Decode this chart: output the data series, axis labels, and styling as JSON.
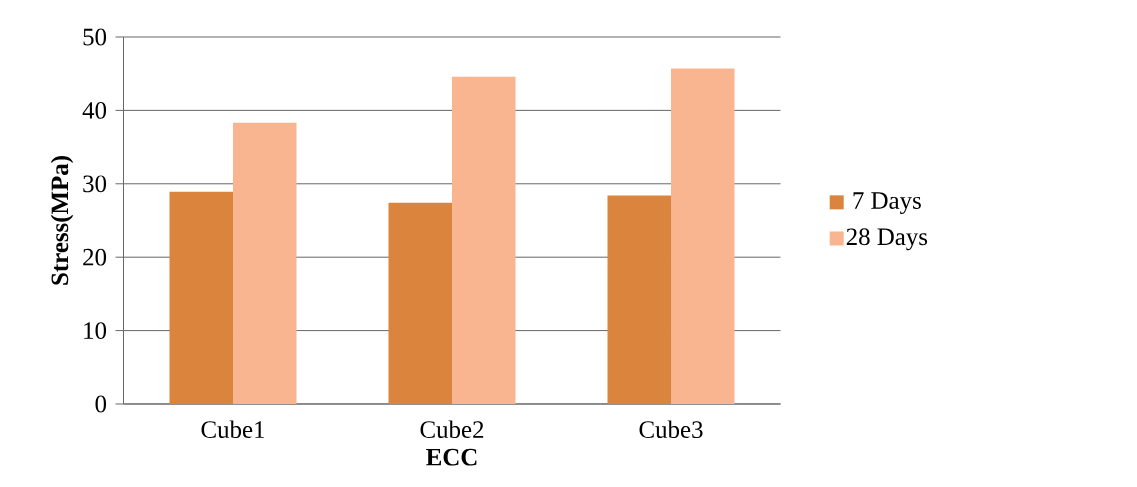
{
  "chart_data": {
    "type": "bar",
    "xlabel": "ECC",
    "ylabel": "Stress(MPa)",
    "categories": [
      "Cube1",
      "Cube2",
      "Cube3"
    ],
    "series": [
      {
        "name": "7 Days",
        "color": "#db843d",
        "values": [
          28.9,
          27.4,
          28.4
        ]
      },
      {
        "name": "28 Days",
        "color": "#f8b58f",
        "values": [
          38.3,
          44.6,
          45.7
        ]
      }
    ],
    "ylim": [
      0,
      50
    ],
    "yticks": [
      0,
      10,
      20,
      30,
      40,
      50
    ],
    "grid": "y",
    "legend": "right"
  }
}
